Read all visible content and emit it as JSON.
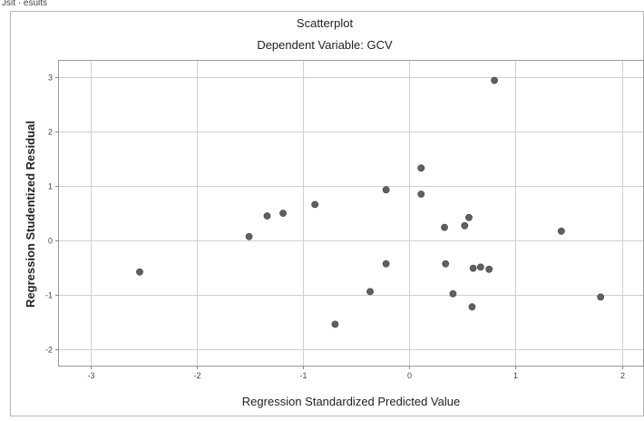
{
  "top_fragment": "Jsit · esults",
  "chart_data": {
    "type": "scatter",
    "title": "Scatterplot",
    "subtitle": "Dependent Variable: GCV",
    "xlabel": "Regression Standardized Predicted Value",
    "ylabel": "Regression Studentized Residual",
    "xlim": [
      -3.3,
      2.2
    ],
    "ylim": [
      -2.3,
      3.3
    ],
    "x_ticks": [
      -3,
      -2,
      -1,
      0,
      1,
      2
    ],
    "y_ticks": [
      -2,
      -1,
      0,
      1,
      2,
      3
    ],
    "grid": true,
    "point_color": "#606060",
    "x": [
      -2.54,
      -1.51,
      -1.34,
      -1.19,
      -0.89,
      -0.7,
      -0.37,
      -0.22,
      -0.22,
      0.11,
      0.11,
      0.33,
      0.34,
      0.41,
      0.52,
      0.56,
      0.59,
      0.6,
      0.67,
      0.75,
      0.8,
      1.43,
      1.8
    ],
    "y": [
      -0.58,
      0.07,
      0.45,
      0.5,
      0.66,
      -1.54,
      -0.94,
      -0.43,
      0.93,
      1.33,
      0.85,
      0.24,
      -0.43,
      -0.98,
      0.27,
      0.42,
      -1.22,
      -0.51,
      -0.49,
      -0.53,
      2.94,
      0.17,
      -1.04
    ]
  }
}
